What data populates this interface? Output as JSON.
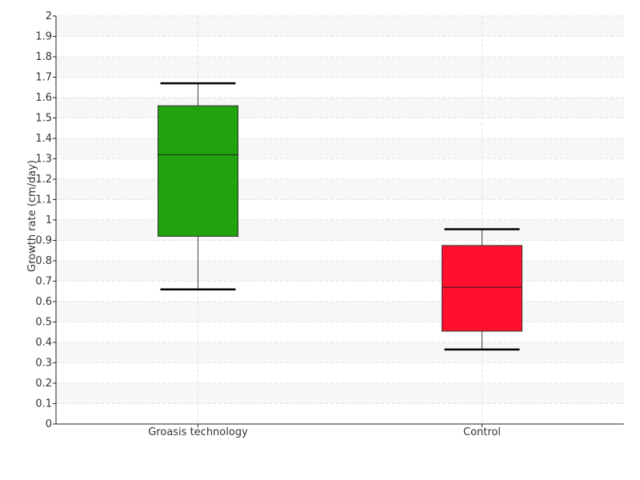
{
  "chart_data": {
    "type": "box",
    "title": "",
    "xlabel": "",
    "ylabel": "Growth rate (cm/day)",
    "ylim": [
      0,
      2
    ],
    "ytick_step": 0.1,
    "yticks": [
      "0",
      "0.1",
      "0.2",
      "0.3",
      "0.4",
      "0.5",
      "0.6",
      "0.7",
      "0.8",
      "0.9",
      "1",
      "1.1",
      "1.2",
      "1.3",
      "1.4",
      "1.5",
      "1.6",
      "1.7",
      "1.8",
      "1.9",
      "2"
    ],
    "grid": true,
    "categories": [
      "Groasis technology",
      "Control"
    ],
    "boxes": [
      {
        "category": "Groasis technology",
        "min": 0.66,
        "q1": 0.92,
        "median": 1.32,
        "q3": 1.56,
        "max": 1.67,
        "color": "#22a20e"
      },
      {
        "category": "Control",
        "min": 0.365,
        "q1": 0.455,
        "median": 0.67,
        "q3": 0.875,
        "max": 0.955,
        "color": "#ff102d"
      }
    ]
  }
}
